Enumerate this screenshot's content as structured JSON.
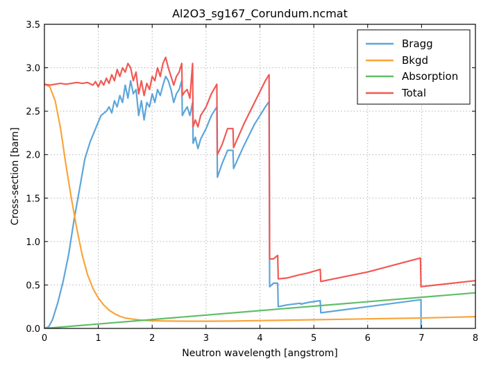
{
  "chart_data": {
    "type": "line",
    "title": "Al2O3_sg167_Corundum.ncmat",
    "xlabel": "Neutron wavelength [angstrom]",
    "ylabel": "Cross-section [barn]",
    "xlim": [
      0,
      8
    ],
    "ylim": [
      0,
      3.5
    ],
    "xticks": [
      0,
      1,
      2,
      3,
      4,
      5,
      6,
      7,
      8
    ],
    "yticks": [
      0.0,
      0.5,
      1.0,
      1.5,
      2.0,
      2.5,
      3.0,
      3.5
    ],
    "xtick_labels": [
      "0",
      "1",
      "2",
      "3",
      "4",
      "5",
      "6",
      "7",
      "8"
    ],
    "ytick_labels": [
      "0.0",
      "0.5",
      "1.0",
      "1.5",
      "2.0",
      "2.5",
      "3.0",
      "3.5"
    ],
    "grid": true,
    "legend_position": "top-right",
    "series": [
      {
        "name": "Bragg",
        "color": "#5da5da",
        "x": [
          0.0,
          0.08,
          0.15,
          0.25,
          0.35,
          0.45,
          0.55,
          0.65,
          0.75,
          0.85,
          0.95,
          1.05,
          1.15,
          1.2,
          1.25,
          1.3,
          1.35,
          1.4,
          1.45,
          1.5,
          1.55,
          1.6,
          1.65,
          1.7,
          1.75,
          1.8,
          1.85,
          1.9,
          1.95,
          2.0,
          2.05,
          2.1,
          2.15,
          2.2,
          2.25,
          2.3,
          2.35,
          2.4,
          2.45,
          2.5,
          2.55,
          2.56,
          2.6,
          2.65,
          2.7,
          2.75,
          2.76,
          2.8,
          2.85,
          2.9,
          3.0,
          3.1,
          3.2,
          3.21,
          3.3,
          3.4,
          3.5,
          3.51,
          3.7,
          3.9,
          4.1,
          4.17,
          4.18,
          4.25,
          4.33,
          4.34,
          4.5,
          4.75,
          4.76,
          4.9,
          5.12,
          5.13,
          6.0,
          6.98,
          6.99,
          6.99
        ],
        "y": [
          0.0,
          0.02,
          0.1,
          0.3,
          0.55,
          0.85,
          1.25,
          1.6,
          1.95,
          2.15,
          2.3,
          2.45,
          2.5,
          2.55,
          2.48,
          2.62,
          2.55,
          2.68,
          2.6,
          2.8,
          2.65,
          2.85,
          2.7,
          2.75,
          2.45,
          2.62,
          2.4,
          2.6,
          2.55,
          2.7,
          2.6,
          2.75,
          2.68,
          2.8,
          2.9,
          2.85,
          2.75,
          2.6,
          2.7,
          2.75,
          2.85,
          2.45,
          2.5,
          2.55,
          2.45,
          2.6,
          2.13,
          2.2,
          2.07,
          2.18,
          2.3,
          2.45,
          2.55,
          1.74,
          1.9,
          2.05,
          2.05,
          1.84,
          2.1,
          2.35,
          2.55,
          2.61,
          0.48,
          0.52,
          0.52,
          0.25,
          0.27,
          0.29,
          0.28,
          0.3,
          0.32,
          0.18,
          0.25,
          0.33,
          0.33,
          0.0
        ]
      },
      {
        "name": "Bkgd",
        "color": "#faa43a",
        "x": [
          0.0,
          0.1,
          0.2,
          0.3,
          0.4,
          0.5,
          0.6,
          0.7,
          0.8,
          0.9,
          1.0,
          1.1,
          1.2,
          1.3,
          1.4,
          1.5,
          1.6,
          1.8,
          2.0,
          2.3,
          2.7,
          3.0,
          3.5,
          4.0,
          5.0,
          6.0,
          7.0,
          8.0
        ],
        "y": [
          2.81,
          2.78,
          2.62,
          2.3,
          1.88,
          1.5,
          1.15,
          0.85,
          0.62,
          0.46,
          0.35,
          0.27,
          0.21,
          0.17,
          0.14,
          0.12,
          0.11,
          0.095,
          0.088,
          0.085,
          0.083,
          0.083,
          0.085,
          0.09,
          0.1,
          0.11,
          0.12,
          0.135
        ]
      },
      {
        "name": "Absorption",
        "color": "#60bd68",
        "x": [
          0.0,
          8.0
        ],
        "y": [
          0.0,
          0.41
        ]
      },
      {
        "name": "Total",
        "color": "#f15854",
        "x": [
          0.0,
          0.1,
          0.2,
          0.3,
          0.4,
          0.5,
          0.6,
          0.7,
          0.8,
          0.9,
          0.95,
          1.0,
          1.05,
          1.1,
          1.15,
          1.2,
          1.25,
          1.3,
          1.35,
          1.4,
          1.45,
          1.5,
          1.55,
          1.6,
          1.65,
          1.7,
          1.75,
          1.8,
          1.85,
          1.9,
          1.95,
          2.0,
          2.05,
          2.1,
          2.15,
          2.2,
          2.25,
          2.3,
          2.35,
          2.4,
          2.45,
          2.5,
          2.55,
          2.56,
          2.6,
          2.65,
          2.7,
          2.75,
          2.76,
          2.8,
          2.85,
          2.9,
          3.0,
          3.1,
          3.2,
          3.21,
          3.3,
          3.4,
          3.5,
          3.51,
          3.7,
          3.9,
          4.1,
          4.17,
          4.18,
          4.25,
          4.33,
          4.34,
          4.5,
          4.75,
          4.76,
          4.9,
          5.12,
          5.13,
          6.0,
          6.98,
          6.99,
          8.0
        ],
        "y": [
          2.81,
          2.8,
          2.81,
          2.82,
          2.81,
          2.82,
          2.83,
          2.82,
          2.83,
          2.8,
          2.84,
          2.78,
          2.85,
          2.8,
          2.88,
          2.82,
          2.92,
          2.85,
          2.98,
          2.9,
          3.0,
          2.95,
          3.05,
          3.0,
          2.85,
          2.95,
          2.7,
          2.85,
          2.68,
          2.82,
          2.75,
          2.9,
          2.85,
          3.0,
          2.9,
          3.05,
          3.12,
          3.0,
          2.9,
          2.8,
          2.9,
          2.95,
          3.05,
          2.68,
          2.72,
          2.75,
          2.65,
          3.05,
          2.32,
          2.4,
          2.32,
          2.45,
          2.55,
          2.7,
          2.81,
          2.0,
          2.12,
          2.3,
          2.3,
          2.08,
          2.35,
          2.6,
          2.85,
          2.92,
          0.8,
          0.8,
          0.84,
          0.57,
          0.58,
          0.62,
          0.62,
          0.64,
          0.68,
          0.54,
          0.65,
          0.81,
          0.48,
          0.55
        ]
      }
    ]
  }
}
